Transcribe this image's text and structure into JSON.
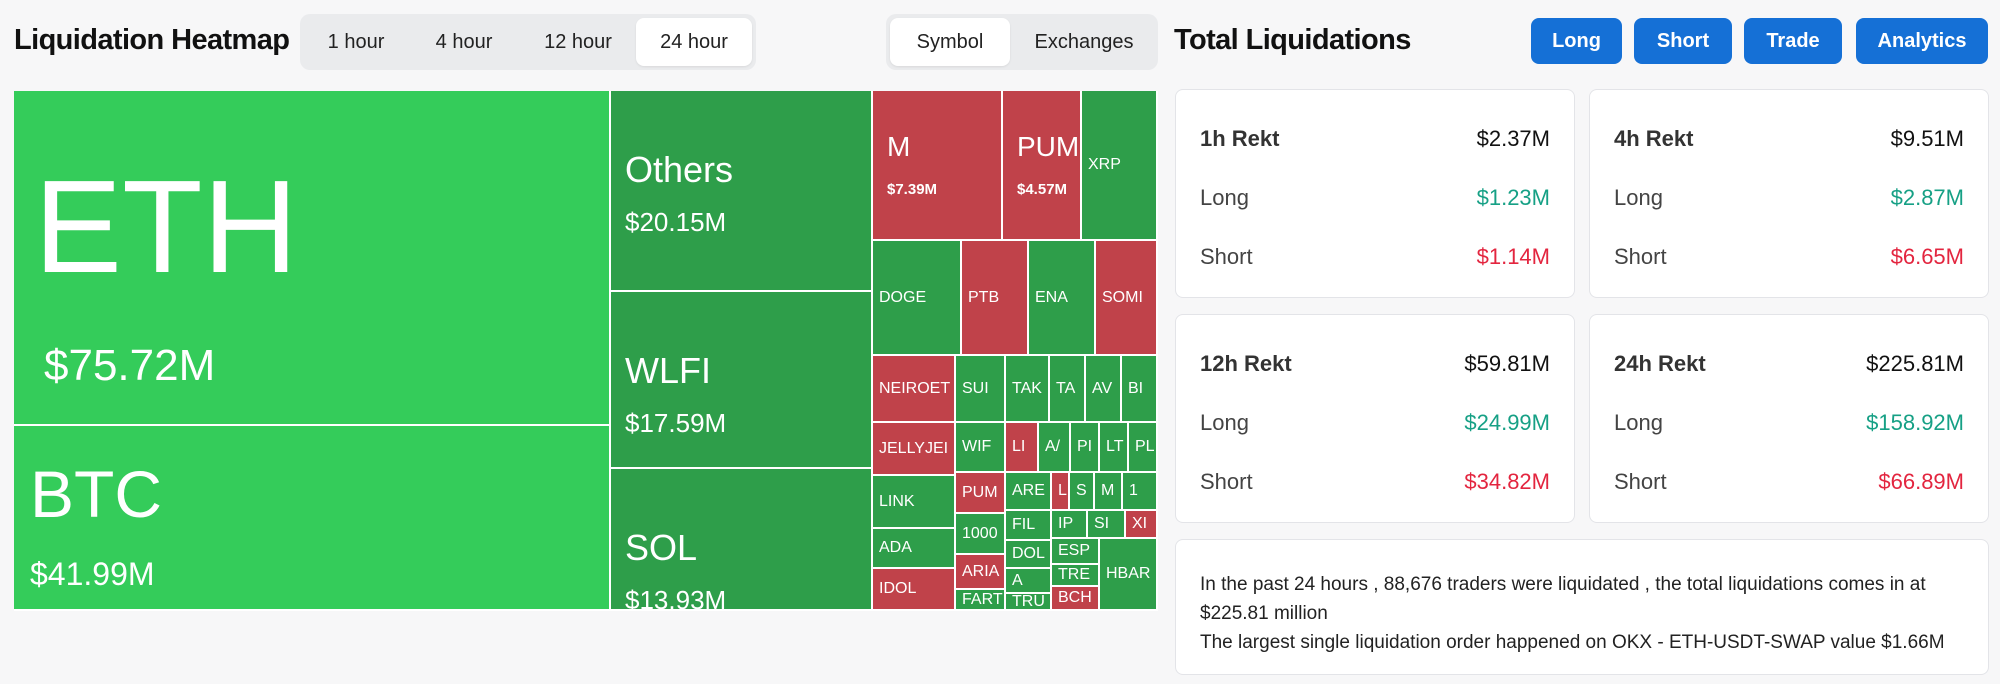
{
  "header": {
    "heatmap_title": "Liquidation Heatmap",
    "time_tabs": [
      "1 hour",
      "4 hour",
      "12 hour",
      "24 hour"
    ],
    "active_time_tab": "24 hour",
    "view_tabs": [
      "Symbol",
      "Exchanges"
    ],
    "active_view_tab": "Symbol",
    "totals_title": "Total Liquidations",
    "action_buttons": [
      "Long",
      "Short",
      "Trade",
      "Analytics"
    ]
  },
  "colors": {
    "green_big": "#34cc5a",
    "green": "#2e9e4a",
    "red": "#c0424a",
    "accent": "#1570d6"
  },
  "treemap": {
    "tiles": [
      {
        "symbol": "ETH",
        "value": "$75.72M",
        "color": "green_big"
      },
      {
        "symbol": "BTC",
        "value": "$41.99M",
        "color": "green_big"
      },
      {
        "symbol": "Others",
        "value": "$20.15M",
        "color": "green"
      },
      {
        "symbol": "WLFI",
        "value": "$17.59M",
        "color": "green"
      },
      {
        "symbol": "SOL",
        "value": "$13.93M",
        "color": "green"
      },
      {
        "symbol": "M",
        "value": "$7.39M",
        "color": "red"
      },
      {
        "symbol": "PUM",
        "value": "$4.57M",
        "color": "red"
      },
      {
        "symbol": "XRP",
        "value": "",
        "color": "green"
      },
      {
        "symbol": "DOGE",
        "value": "",
        "color": "green"
      },
      {
        "symbol": "PTB",
        "value": "",
        "color": "red"
      },
      {
        "symbol": "ENA",
        "value": "",
        "color": "green"
      },
      {
        "symbol": "SOMI",
        "value": "",
        "color": "red"
      },
      {
        "symbol": "NEIROET",
        "value": "",
        "color": "red"
      },
      {
        "symbol": "SUI",
        "value": "",
        "color": "green"
      },
      {
        "symbol": "TAK",
        "value": "",
        "color": "green"
      },
      {
        "symbol": "TA",
        "value": "",
        "color": "green"
      },
      {
        "symbol": "AV",
        "value": "",
        "color": "green"
      },
      {
        "symbol": "BI",
        "value": "",
        "color": "green"
      },
      {
        "symbol": "JELLYJEI",
        "value": "",
        "color": "red"
      },
      {
        "symbol": "WIF",
        "value": "",
        "color": "green"
      },
      {
        "symbol": "LI",
        "value": "",
        "color": "red"
      },
      {
        "symbol": "A/",
        "value": "",
        "color": "green"
      },
      {
        "symbol": "PI",
        "value": "",
        "color": "green"
      },
      {
        "symbol": "LT",
        "value": "",
        "color": "green"
      },
      {
        "symbol": "PL",
        "value": "",
        "color": "green"
      },
      {
        "symbol": "LINK",
        "value": "",
        "color": "green"
      },
      {
        "symbol": "PUM",
        "value": "",
        "color": "red"
      },
      {
        "symbol": "ARE",
        "value": "",
        "color": "green"
      },
      {
        "symbol": "L",
        "value": "",
        "color": "red"
      },
      {
        "symbol": "S",
        "value": "",
        "color": "green"
      },
      {
        "symbol": "M",
        "value": "",
        "color": "green"
      },
      {
        "symbol": "1",
        "value": "",
        "color": "green"
      },
      {
        "symbol": "1000",
        "value": "",
        "color": "green"
      },
      {
        "symbol": "FIL",
        "value": "",
        "color": "green"
      },
      {
        "symbol": "IP",
        "value": "",
        "color": "green"
      },
      {
        "symbol": "SI",
        "value": "",
        "color": "green"
      },
      {
        "symbol": "XI",
        "value": "",
        "color": "red"
      },
      {
        "symbol": "ADA",
        "value": "",
        "color": "green"
      },
      {
        "symbol": "ARIA",
        "value": "",
        "color": "red"
      },
      {
        "symbol": "DOL",
        "value": "",
        "color": "green"
      },
      {
        "symbol": "ESP",
        "value": "",
        "color": "green"
      },
      {
        "symbol": "A",
        "value": "",
        "color": "green"
      },
      {
        "symbol": "TRE",
        "value": "",
        "color": "green"
      },
      {
        "symbol": "IDOL",
        "value": "",
        "color": "red"
      },
      {
        "symbol": "FART",
        "value": "",
        "color": "green"
      },
      {
        "symbol": "TRU",
        "value": "",
        "color": "green"
      },
      {
        "symbol": "BCH",
        "value": "",
        "color": "red"
      },
      {
        "symbol": "HBAR",
        "value": "",
        "color": "green"
      }
    ]
  },
  "stats": [
    {
      "title": "1h Rekt",
      "total": "$2.37M",
      "long_label": "Long",
      "long": "$1.23M",
      "short_label": "Short",
      "short": "$1.14M"
    },
    {
      "title": "4h Rekt",
      "total": "$9.51M",
      "long_label": "Long",
      "long": "$2.87M",
      "short_label": "Short",
      "short": "$6.65M"
    },
    {
      "title": "12h Rekt",
      "total": "$59.81M",
      "long_label": "Long",
      "long": "$24.99M",
      "short_label": "Short",
      "short": "$34.82M"
    },
    {
      "title": "24h Rekt",
      "total": "$225.81M",
      "long_label": "Long",
      "long": "$158.92M",
      "short_label": "Short",
      "short": "$66.89M"
    }
  ],
  "summary": {
    "line1": "In the past 24 hours , 88,676 traders were liquidated , the total liquidations comes in at $225.81 million",
    "line2": "The largest single liquidation order happened on OKX - ETH-USDT-SWAP value $1.66M"
  }
}
